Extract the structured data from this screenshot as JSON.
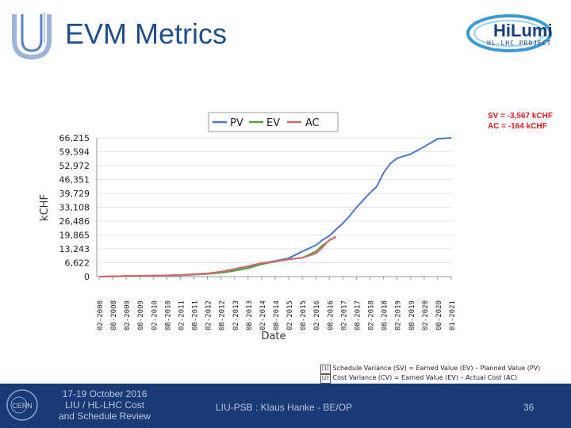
{
  "slide": {
    "title": "EVM Metrics",
    "logo_main": "HiLumi",
    "logo_sub": "HL-LHC PROJECT",
    "annotation_sv": "SV = -3,567 kCHF",
    "annotation_ac": "AC = -164 kCHF",
    "note_1_marker": "[1]",
    "note_1": "Schedule Variance (SV) = Earned Value (EV) – Planned Value (PV)",
    "note_2_marker": "[2]",
    "note_2": "Cost Variance (CV) = Earned Value (EV) – Actual Cost (AC)"
  },
  "footer": {
    "left_line1": "17-19 October 2016",
    "left_line2": "LIU / HL-LHC  Cost",
    "left_line3": "and Schedule Review",
    "center": "LIU-PSB : Klaus Hanke - BE/OP",
    "page_number": "36",
    "cern_logo": "CERN"
  },
  "colors": {
    "pv": "#4a78c8",
    "ev": "#5aa040",
    "ac": "#d06a6a",
    "footer_bg": "#1a3a75",
    "title": "#1f4e8c",
    "annotation": "#e02020"
  },
  "chart_data": {
    "type": "line",
    "xlabel": "Date",
    "ylabel": "kCHF",
    "ylim": [
      0,
      66215
    ],
    "yticks": [
      "66,215",
      "59,594",
      "52,972",
      "46,351",
      "39,729",
      "33,108",
      "26,486",
      "19,865",
      "13,243",
      "6,622",
      "0"
    ],
    "ytick_values": [
      66215,
      59594,
      52972,
      46351,
      39729,
      33108,
      26486,
      19865,
      13243,
      6622,
      0
    ],
    "x_categories": [
      "02-2008",
      "08-2008",
      "02-2009",
      "08-2009",
      "02-2010",
      "08-2010",
      "02-2011",
      "08-2011",
      "02-2012",
      "08-2012",
      "02-2013",
      "08-2013",
      "02-2014",
      "08-2014",
      "02-2015",
      "08-2015",
      "02-2016",
      "08-2016",
      "02-2017",
      "08-2017",
      "02-2018",
      "08-2018",
      "02-2019",
      "08-2019",
      "02-2020",
      "08-2020",
      "01-2021"
    ],
    "legend": [
      "PV",
      "EV",
      "AC"
    ],
    "series": [
      {
        "name": "PV",
        "x": [
          0,
          2,
          4,
          6,
          8,
          9,
          10,
          11,
          12,
          13,
          14,
          15,
          16,
          16.5,
          17,
          17.5,
          18,
          18.5,
          19,
          19.5,
          20,
          20.5,
          21,
          21.5,
          22,
          23,
          24,
          25,
          26
        ],
        "y": [
          0,
          300,
          500,
          700,
          1500,
          2300,
          3500,
          4800,
          6300,
          7500,
          8800,
          12000,
          15000,
          17500,
          19500,
          22500,
          25500,
          29000,
          33000,
          36500,
          40000,
          43000,
          49500,
          54000,
          56500,
          58500,
          62000,
          65800,
          66215
        ]
      },
      {
        "name": "EV",
        "x": [
          0,
          2,
          4,
          6,
          8,
          9,
          10,
          11,
          12,
          13,
          14,
          15,
          16,
          16.5,
          17,
          17.5
        ],
        "y": [
          0,
          200,
          450,
          600,
          1300,
          1800,
          2800,
          4000,
          5900,
          7200,
          8200,
          9000,
          12000,
          15000,
          17300,
          19000
        ]
      },
      {
        "name": "AC",
        "x": [
          0,
          2,
          4,
          6,
          8,
          9,
          10,
          11,
          12,
          13,
          14,
          15,
          16,
          16.5,
          17,
          17.5
        ],
        "y": [
          0,
          250,
          500,
          700,
          1500,
          2300,
          3700,
          5000,
          6500,
          7200,
          8300,
          9000,
          11000,
          14000,
          17500,
          19000
        ]
      }
    ]
  }
}
